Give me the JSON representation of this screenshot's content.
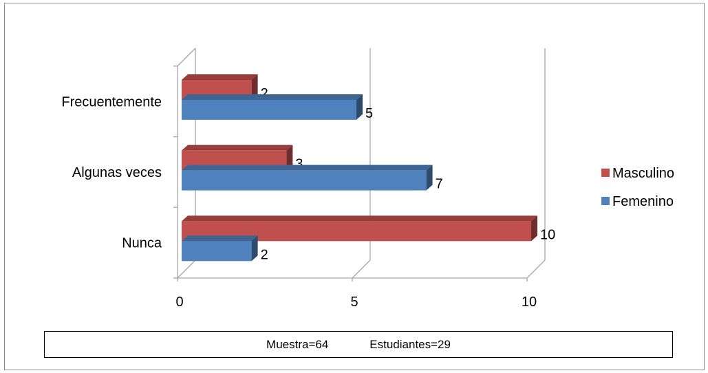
{
  "chart_data": {
    "type": "bar",
    "orientation": "horizontal",
    "style": "3d",
    "categories": [
      "Frecuentemente",
      "Algunas veces",
      "Nunca"
    ],
    "series": [
      {
        "name": "Masculino",
        "values": [
          2,
          3,
          10
        ],
        "color": "#c0504d"
      },
      {
        "name": "Femenino",
        "values": [
          5,
          7,
          2
        ],
        "color": "#4f81bd"
      }
    ],
    "xlim": [
      0,
      10
    ],
    "xticks": [
      0,
      5,
      10
    ],
    "grid": true,
    "legend_position": "right",
    "data_labels": true
  },
  "footer": {
    "muestra": "Muestra=64",
    "estudiantes": "Estudiantes=29"
  }
}
